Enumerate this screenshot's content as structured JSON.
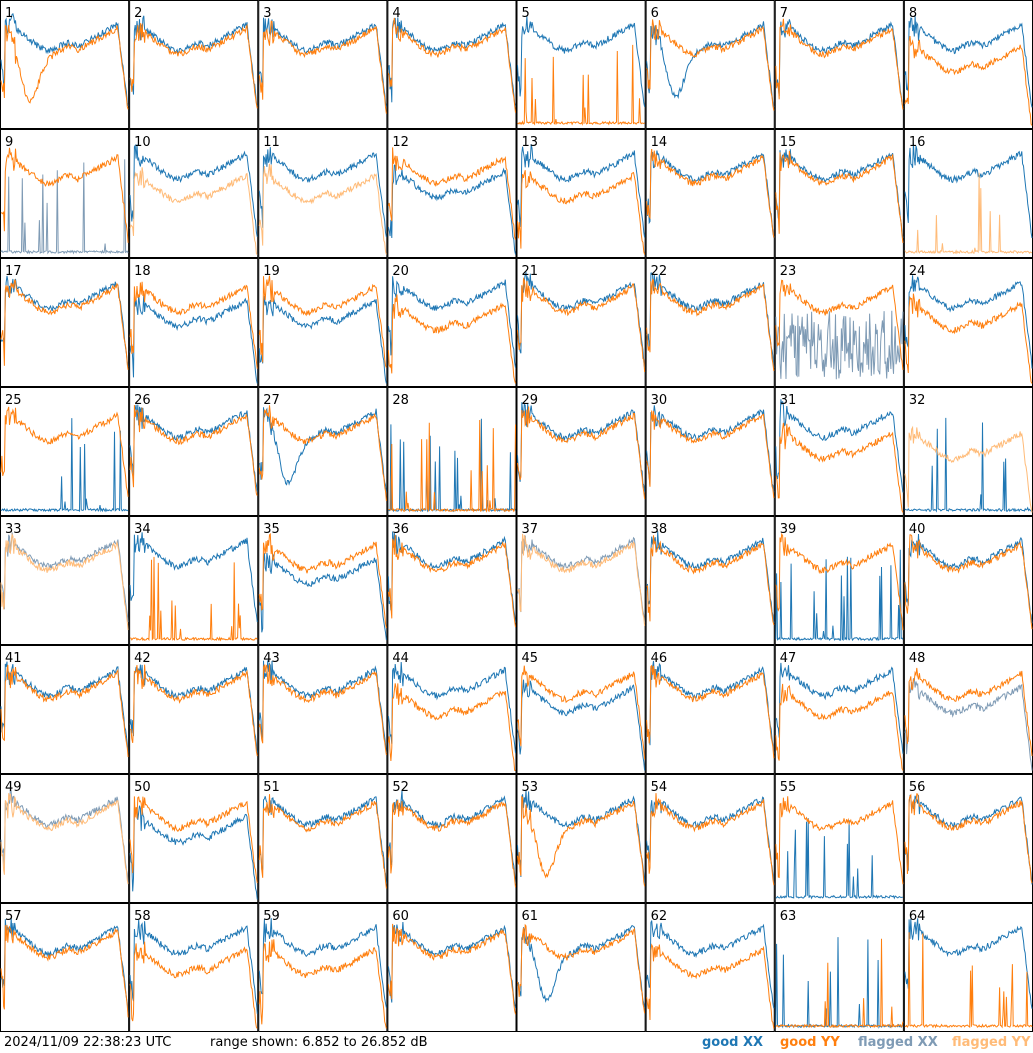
{
  "footer": {
    "timestamp": "2024/11/09 22:38:23 UTC",
    "range": "range shown: 6.852 to 26.852 dB"
  },
  "legend": [
    {
      "label": "good XX",
      "color": "#1f77b4"
    },
    {
      "label": "good YY",
      "color": "#ff7f0e"
    },
    {
      "label": "flagged XX",
      "color": "#7f9bb5"
    },
    {
      "label": "flagged YY",
      "color": "#ffbb78"
    }
  ],
  "chart_data": {
    "type": "line",
    "layout": "small-multiples-8x8",
    "y_range_db": [
      6.852,
      26.852
    ],
    "panels": [
      {
        "id": "1",
        "xx": "good",
        "yy": "good",
        "xx_shape": "flat",
        "yy_shape": "dip"
      },
      {
        "id": "2",
        "xx": "good",
        "yy": "good",
        "xx_shape": "flat",
        "yy_shape": "flat"
      },
      {
        "id": "3",
        "xx": "good",
        "yy": "good",
        "xx_shape": "flat",
        "yy_shape": "flat"
      },
      {
        "id": "4",
        "xx": "good",
        "yy": "good",
        "xx_shape": "flat",
        "yy_shape": "flat"
      },
      {
        "id": "5",
        "xx": "good",
        "yy": "good",
        "xx_shape": "flat",
        "yy_shape": "spiky"
      },
      {
        "id": "6",
        "xx": "good",
        "yy": "good",
        "xx_shape": "dip",
        "yy_shape": "flat"
      },
      {
        "id": "7",
        "xx": "good",
        "yy": "good",
        "xx_shape": "flat",
        "yy_shape": "flat"
      },
      {
        "id": "8",
        "xx": "good",
        "yy": "good",
        "xx_shape": "flat",
        "yy_shape": "low"
      },
      {
        "id": "9",
        "xx": "flagged",
        "yy": "good",
        "xx_shape": "spiky",
        "yy_shape": "flat"
      },
      {
        "id": "10",
        "xx": "good",
        "yy": "flagged",
        "xx_shape": "flat",
        "yy_shape": "low"
      },
      {
        "id": "11",
        "xx": "good",
        "yy": "flagged",
        "xx_shape": "flat",
        "yy_shape": "low"
      },
      {
        "id": "12",
        "xx": "good",
        "yy": "good",
        "xx_shape": "low",
        "yy_shape": "flat"
      },
      {
        "id": "13",
        "xx": "good",
        "yy": "good",
        "xx_shape": "flat",
        "yy_shape": "low"
      },
      {
        "id": "14",
        "xx": "good",
        "yy": "good",
        "xx_shape": "flat",
        "yy_shape": "flat"
      },
      {
        "id": "15",
        "xx": "good",
        "yy": "good",
        "xx_shape": "flat",
        "yy_shape": "flat"
      },
      {
        "id": "16",
        "xx": "good",
        "yy": "flagged",
        "xx_shape": "flat",
        "yy_shape": "spiky"
      },
      {
        "id": "17",
        "xx": "good",
        "yy": "good",
        "xx_shape": "flat",
        "yy_shape": "flat"
      },
      {
        "id": "18",
        "xx": "good",
        "yy": "good",
        "xx_shape": "low",
        "yy_shape": "flat"
      },
      {
        "id": "19",
        "xx": "good",
        "yy": "good",
        "xx_shape": "low",
        "yy_shape": "flat"
      },
      {
        "id": "20",
        "xx": "good",
        "yy": "good",
        "xx_shape": "flat",
        "yy_shape": "low"
      },
      {
        "id": "21",
        "xx": "good",
        "yy": "good",
        "xx_shape": "flat",
        "yy_shape": "flat"
      },
      {
        "id": "22",
        "xx": "good",
        "yy": "good",
        "xx_shape": "flat",
        "yy_shape": "flat"
      },
      {
        "id": "23",
        "xx": "flagged",
        "yy": "good",
        "xx_shape": "noisy",
        "yy_shape": "flat"
      },
      {
        "id": "24",
        "xx": "good",
        "yy": "good",
        "xx_shape": "flat",
        "yy_shape": "low"
      },
      {
        "id": "25",
        "xx": "good",
        "yy": "good",
        "xx_shape": "spiky",
        "yy_shape": "flat"
      },
      {
        "id": "26",
        "xx": "good",
        "yy": "good",
        "xx_shape": "flat",
        "yy_shape": "flat"
      },
      {
        "id": "27",
        "xx": "good",
        "yy": "good",
        "xx_shape": "dip",
        "yy_shape": "flat"
      },
      {
        "id": "28",
        "xx": "good",
        "yy": "good",
        "xx_shape": "spiky",
        "yy_shape": "spiky"
      },
      {
        "id": "29",
        "xx": "good",
        "yy": "good",
        "xx_shape": "flat",
        "yy_shape": "flat"
      },
      {
        "id": "30",
        "xx": "good",
        "yy": "good",
        "xx_shape": "flat",
        "yy_shape": "flat"
      },
      {
        "id": "31",
        "xx": "good",
        "yy": "good",
        "xx_shape": "flat",
        "yy_shape": "low"
      },
      {
        "id": "32",
        "xx": "good",
        "yy": "flagged",
        "xx_shape": "spiky",
        "yy_shape": "low"
      },
      {
        "id": "33",
        "xx": "flagged",
        "yy": "flagged",
        "xx_shape": "flat",
        "yy_shape": "flat"
      },
      {
        "id": "34",
        "xx": "good",
        "yy": "good",
        "xx_shape": "flat",
        "yy_shape": "spiky"
      },
      {
        "id": "35",
        "xx": "good",
        "yy": "good",
        "xx_shape": "low",
        "yy_shape": "flat"
      },
      {
        "id": "36",
        "xx": "good",
        "yy": "good",
        "xx_shape": "flat",
        "yy_shape": "flat"
      },
      {
        "id": "37",
        "xx": "flagged",
        "yy": "flagged",
        "xx_shape": "flat",
        "yy_shape": "flat"
      },
      {
        "id": "38",
        "xx": "good",
        "yy": "good",
        "xx_shape": "flat",
        "yy_shape": "flat"
      },
      {
        "id": "39",
        "xx": "good",
        "yy": "good",
        "xx_shape": "spiky",
        "yy_shape": "flat"
      },
      {
        "id": "40",
        "xx": "good",
        "yy": "good",
        "xx_shape": "flat",
        "yy_shape": "flat"
      },
      {
        "id": "41",
        "xx": "good",
        "yy": "good",
        "xx_shape": "flat",
        "yy_shape": "flat"
      },
      {
        "id": "42",
        "xx": "good",
        "yy": "good",
        "xx_shape": "flat",
        "yy_shape": "flat"
      },
      {
        "id": "43",
        "xx": "good",
        "yy": "good",
        "xx_shape": "flat",
        "yy_shape": "flat"
      },
      {
        "id": "44",
        "xx": "good",
        "yy": "good",
        "xx_shape": "flat",
        "yy_shape": "low"
      },
      {
        "id": "45",
        "xx": "good",
        "yy": "good",
        "xx_shape": "low",
        "yy_shape": "flat"
      },
      {
        "id": "46",
        "xx": "good",
        "yy": "good",
        "xx_shape": "flat",
        "yy_shape": "flat"
      },
      {
        "id": "47",
        "xx": "good",
        "yy": "good",
        "xx_shape": "flat",
        "yy_shape": "low"
      },
      {
        "id": "48",
        "xx": "flagged",
        "yy": "good",
        "xx_shape": "low",
        "yy_shape": "flat"
      },
      {
        "id": "49",
        "xx": "flagged",
        "yy": "flagged",
        "xx_shape": "flat",
        "yy_shape": "flat"
      },
      {
        "id": "50",
        "xx": "good",
        "yy": "good",
        "xx_shape": "low",
        "yy_shape": "flat"
      },
      {
        "id": "51",
        "xx": "good",
        "yy": "good",
        "xx_shape": "flat",
        "yy_shape": "flat"
      },
      {
        "id": "52",
        "xx": "good",
        "yy": "good",
        "xx_shape": "flat",
        "yy_shape": "flat"
      },
      {
        "id": "53",
        "xx": "good",
        "yy": "good",
        "xx_shape": "flat",
        "yy_shape": "dip"
      },
      {
        "id": "54",
        "xx": "good",
        "yy": "good",
        "xx_shape": "flat",
        "yy_shape": "flat"
      },
      {
        "id": "55",
        "xx": "good",
        "yy": "good",
        "xx_shape": "spiky",
        "yy_shape": "flat"
      },
      {
        "id": "56",
        "xx": "good",
        "yy": "good",
        "xx_shape": "flat",
        "yy_shape": "flat"
      },
      {
        "id": "57",
        "xx": "good",
        "yy": "good",
        "xx_shape": "flat",
        "yy_shape": "flat"
      },
      {
        "id": "58",
        "xx": "good",
        "yy": "good",
        "xx_shape": "flat",
        "yy_shape": "low"
      },
      {
        "id": "59",
        "xx": "good",
        "yy": "good",
        "xx_shape": "flat",
        "yy_shape": "low"
      },
      {
        "id": "60",
        "xx": "good",
        "yy": "good",
        "xx_shape": "flat",
        "yy_shape": "flat"
      },
      {
        "id": "61",
        "xx": "good",
        "yy": "good",
        "xx_shape": "dip",
        "yy_shape": "flat"
      },
      {
        "id": "62",
        "xx": "good",
        "yy": "good",
        "xx_shape": "flat",
        "yy_shape": "low"
      },
      {
        "id": "63",
        "xx": "good",
        "yy": "good",
        "xx_shape": "spiky",
        "yy_shape": "spiky"
      },
      {
        "id": "64",
        "xx": "good",
        "yy": "good",
        "xx_shape": "flat",
        "yy_shape": "spiky"
      }
    ]
  }
}
